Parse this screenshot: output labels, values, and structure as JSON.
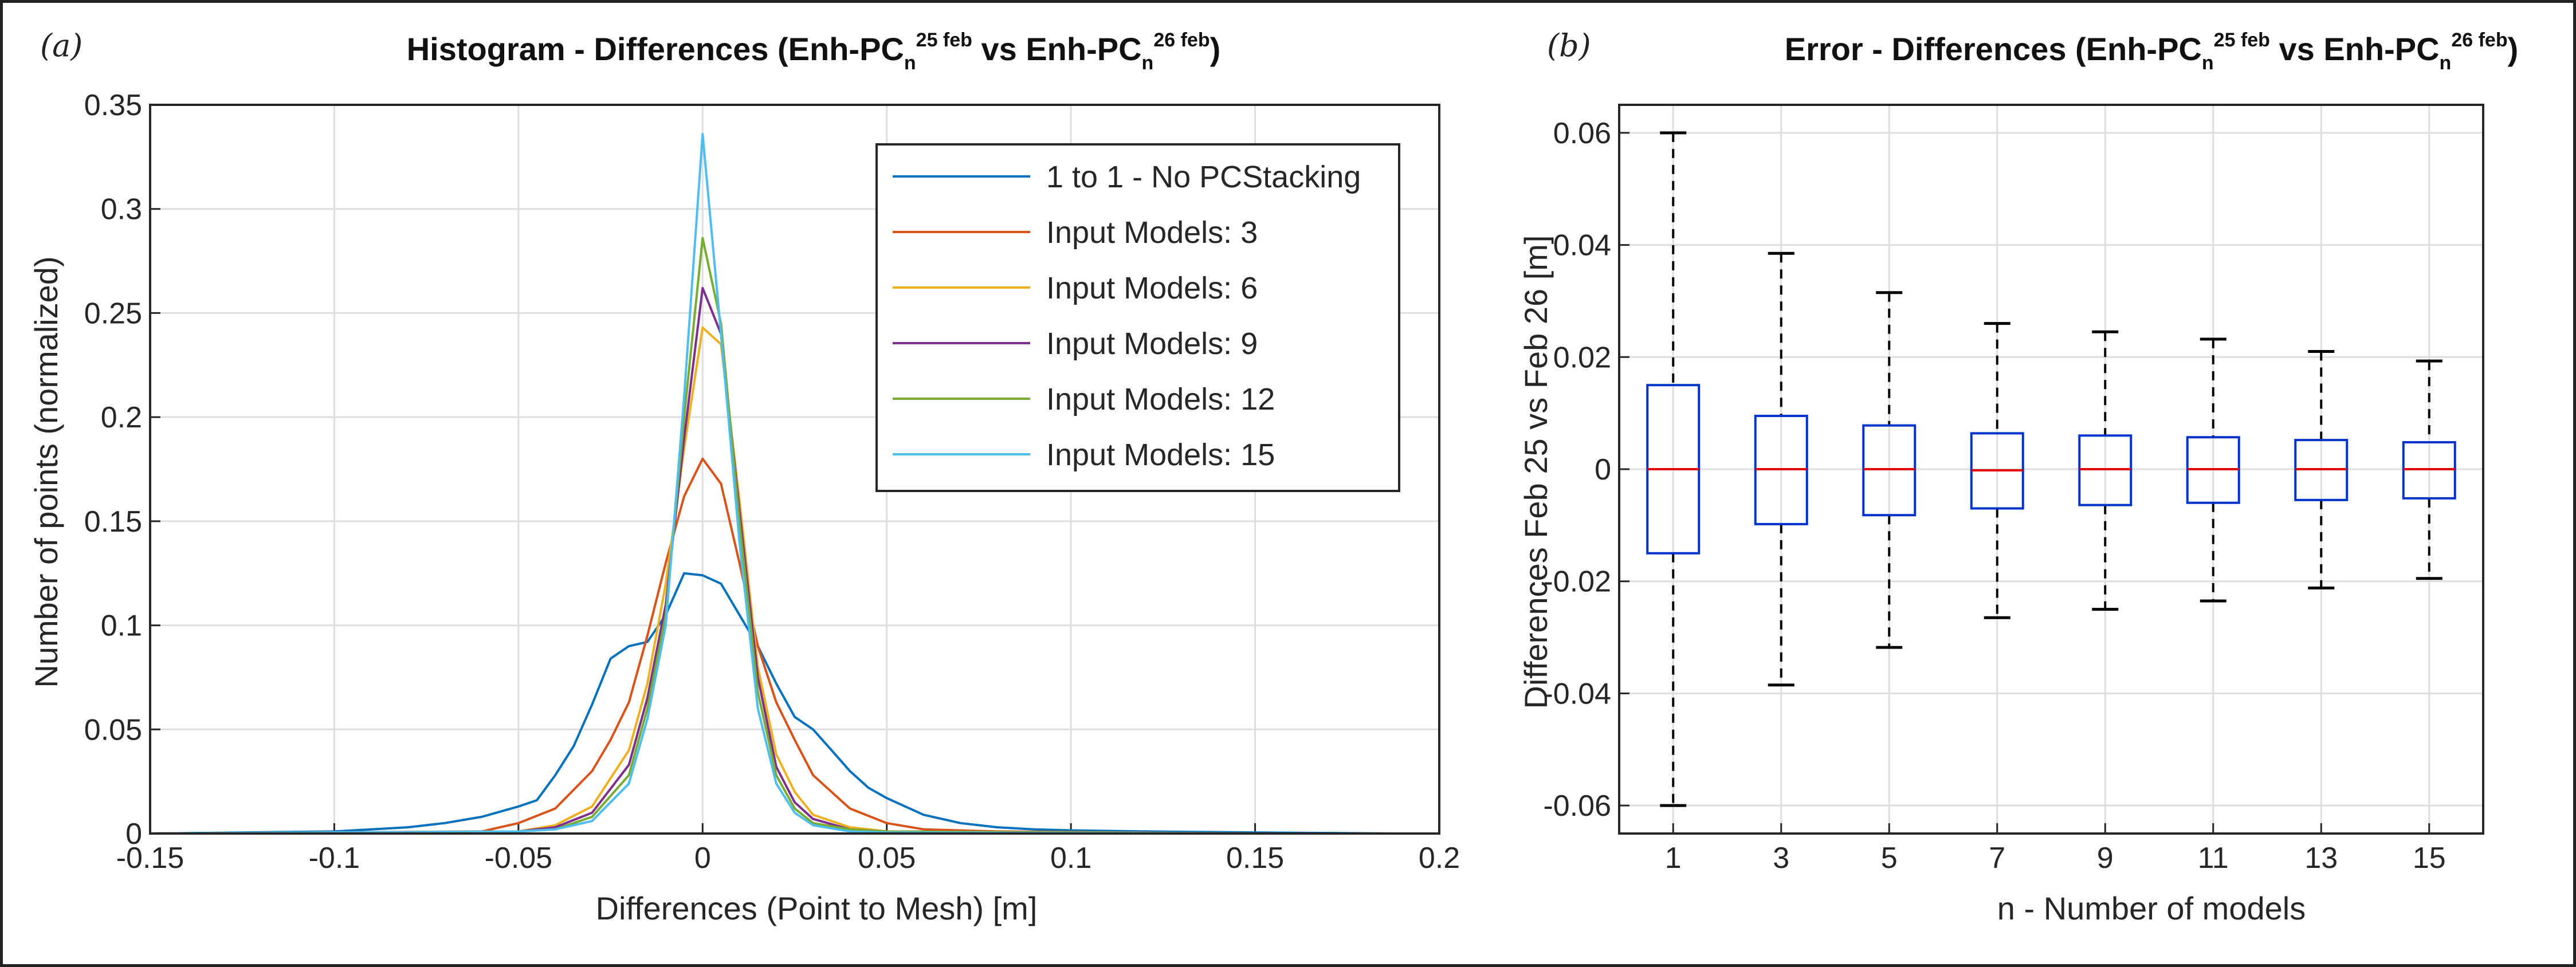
{
  "panels": [
    {
      "label": "(a)",
      "title": {
        "main": "Histogram - Differences (Enh-PC",
        "sub1": "n",
        "sup1": "25 feb",
        "mid": " vs Enh-PC",
        "sub2": "n",
        "sup2": "26 feb",
        "end": ")"
      },
      "xlabel": "Differences (Point to Mesh)   [m]",
      "ylabel": "Number of points (normalized)"
    },
    {
      "label": "(b)",
      "title": {
        "main": "Error - Differences (Enh-PC",
        "sub1": "n",
        "sup1": "25 feb",
        "mid": " vs Enh-PC",
        "sub2": "n",
        "sup2": "26 feb",
        "end": ")"
      },
      "xlabel": "n - Number of models",
      "ylabel": "Differences Feb 25 vs Feb 26  [m]"
    }
  ],
  "chart_data": [
    {
      "type": "line",
      "xlim": [
        -0.15,
        0.2
      ],
      "ylim": [
        0,
        0.35
      ],
      "xticks": [
        -0.15,
        -0.1,
        -0.05,
        0,
        0.05,
        0.1,
        0.15,
        0.2
      ],
      "xtick_labels": [
        "-0.15",
        "-0.1",
        "-0.05",
        "0",
        "0.05",
        "0.1",
        "0.15",
        "0.2"
      ],
      "yticks": [
        0,
        0.05,
        0.1,
        0.15,
        0.2,
        0.25,
        0.3,
        0.35
      ],
      "ytick_labels": [
        "0",
        "0.05",
        "0.1",
        "0.15",
        "0.2",
        "0.25",
        "0.3",
        "0.35"
      ],
      "grid": true,
      "legend_position": "top-right",
      "series": [
        {
          "name": "1 to 1 - No PCStacking",
          "color": "#0072BD",
          "x": [
            -0.15,
            -0.1,
            -0.08,
            -0.07,
            -0.06,
            -0.05,
            -0.045,
            -0.04,
            -0.035,
            -0.03,
            -0.025,
            -0.02,
            -0.015,
            -0.01,
            -0.005,
            0,
            0.005,
            0.01,
            0.015,
            0.02,
            0.025,
            0.03,
            0.035,
            0.04,
            0.045,
            0.05,
            0.06,
            0.07,
            0.08,
            0.09,
            0.1,
            0.12,
            0.15,
            0.187
          ],
          "y": [
            0,
            0.001,
            0.003,
            0.005,
            0.008,
            0.013,
            0.016,
            0.028,
            0.042,
            0.062,
            0.084,
            0.09,
            0.092,
            0.105,
            0.125,
            0.124,
            0.12,
            0.105,
            0.09,
            0.072,
            0.056,
            0.05,
            0.04,
            0.03,
            0.022,
            0.017,
            0.009,
            0.005,
            0.003,
            0.002,
            0.0015,
            0.001,
            0.0005,
            0
          ]
        },
        {
          "name": "Input Models: 3",
          "color": "#D95319",
          "x": [
            -0.15,
            -0.06,
            -0.05,
            -0.04,
            -0.03,
            -0.025,
            -0.02,
            -0.015,
            -0.01,
            -0.005,
            0,
            0.005,
            0.01,
            0.015,
            0.02,
            0.025,
            0.03,
            0.035,
            0.04,
            0.05,
            0.06,
            0.08,
            0.15,
            0.16
          ],
          "y": [
            0,
            0.001,
            0.005,
            0.012,
            0.03,
            0.045,
            0.063,
            0.095,
            0.13,
            0.162,
            0.18,
            0.168,
            0.13,
            0.09,
            0.063,
            0.045,
            0.028,
            0.02,
            0.012,
            0.005,
            0.002,
            0.001,
            0,
            0
          ]
        },
        {
          "name": "Input Models: 6",
          "color": "#EDB120",
          "x": [
            -0.15,
            -0.05,
            -0.04,
            -0.03,
            -0.02,
            -0.015,
            -0.01,
            -0.005,
            0,
            0.005,
            0.01,
            0.015,
            0.02,
            0.025,
            0.03,
            0.04,
            0.05,
            0.15,
            0.16
          ],
          "y": [
            0,
            0.001,
            0.004,
            0.013,
            0.04,
            0.072,
            0.12,
            0.185,
            0.243,
            0.235,
            0.16,
            0.08,
            0.038,
            0.02,
            0.009,
            0.003,
            0.001,
            0,
            0
          ]
        },
        {
          "name": "Input Models: 9",
          "color": "#7E2F8E",
          "x": [
            -0.15,
            -0.05,
            -0.04,
            -0.03,
            -0.02,
            -0.015,
            -0.01,
            -0.005,
            0,
            0.005,
            0.01,
            0.015,
            0.02,
            0.025,
            0.03,
            0.04,
            0.05,
            0.15
          ],
          "y": [
            0,
            0.001,
            0.003,
            0.01,
            0.033,
            0.065,
            0.11,
            0.19,
            0.262,
            0.24,
            0.155,
            0.075,
            0.032,
            0.015,
            0.007,
            0.002,
            0.001,
            0
          ]
        },
        {
          "name": "Input Models: 12",
          "color": "#77AC30",
          "x": [
            -0.15,
            -0.05,
            -0.04,
            -0.03,
            -0.02,
            -0.015,
            -0.01,
            -0.005,
            0,
            0.005,
            0.01,
            0.015,
            0.02,
            0.025,
            0.03,
            0.04,
            0.05,
            0.15
          ],
          "y": [
            0,
            0.001,
            0.002,
            0.008,
            0.028,
            0.06,
            0.105,
            0.2,
            0.286,
            0.245,
            0.15,
            0.068,
            0.028,
            0.012,
            0.005,
            0.002,
            0.001,
            0
          ]
        },
        {
          "name": "Input Models: 15",
          "color": "#4DBEEE",
          "x": [
            -0.15,
            -0.05,
            -0.04,
            -0.03,
            -0.02,
            -0.015,
            -0.01,
            -0.005,
            0,
            0.005,
            0.01,
            0.015,
            0.02,
            0.025,
            0.03,
            0.04,
            0.05,
            0.15
          ],
          "y": [
            0,
            0.001,
            0.002,
            0.006,
            0.024,
            0.055,
            0.1,
            0.21,
            0.336,
            0.24,
            0.14,
            0.06,
            0.024,
            0.01,
            0.004,
            0.001,
            0.0005,
            0
          ]
        }
      ]
    },
    {
      "type": "box",
      "xlim": [
        0,
        16
      ],
      "ylim": [
        -0.065,
        0.065
      ],
      "categories": [
        "1",
        "3",
        "5",
        "7",
        "9",
        "11",
        "13",
        "15"
      ],
      "yticks": [
        -0.06,
        -0.04,
        -0.02,
        0,
        0.02,
        0.04,
        0.06
      ],
      "ytick_labels": [
        "-0.06",
        "-0.04",
        "-0.02",
        "0",
        "0.02",
        "0.04",
        "0.06"
      ],
      "grid": true,
      "box_color": "#0033cc",
      "median_color": "#e00000",
      "whisker_color": "#000000",
      "boxes": [
        {
          "x": 1,
          "whisker_low": -0.06,
          "q1": -0.015,
          "median": 0.0,
          "q3": 0.015,
          "whisker_high": 0.06
        },
        {
          "x": 3,
          "whisker_low": -0.0385,
          "q1": -0.0098,
          "median": 0.0,
          "q3": 0.0095,
          "whisker_high": 0.0385
        },
        {
          "x": 5,
          "whisker_low": -0.0318,
          "q1": -0.0082,
          "median": 0.0,
          "q3": 0.0078,
          "whisker_high": 0.0315
        },
        {
          "x": 7,
          "whisker_low": -0.0265,
          "q1": -0.007,
          "median": -0.0002,
          "q3": 0.0064,
          "whisker_high": 0.026
        },
        {
          "x": 9,
          "whisker_low": -0.025,
          "q1": -0.0064,
          "median": 0.0,
          "q3": 0.006,
          "whisker_high": 0.0245
        },
        {
          "x": 11,
          "whisker_low": -0.0235,
          "q1": -0.006,
          "median": 0.0,
          "q3": 0.0057,
          "whisker_high": 0.0232
        },
        {
          "x": 13,
          "whisker_low": -0.0212,
          "q1": -0.0055,
          "median": 0.0,
          "q3": 0.0052,
          "whisker_high": 0.021
        },
        {
          "x": 15,
          "whisker_low": -0.0195,
          "q1": -0.0052,
          "median": 0.0,
          "q3": 0.0048,
          "whisker_high": 0.0193
        }
      ]
    }
  ]
}
